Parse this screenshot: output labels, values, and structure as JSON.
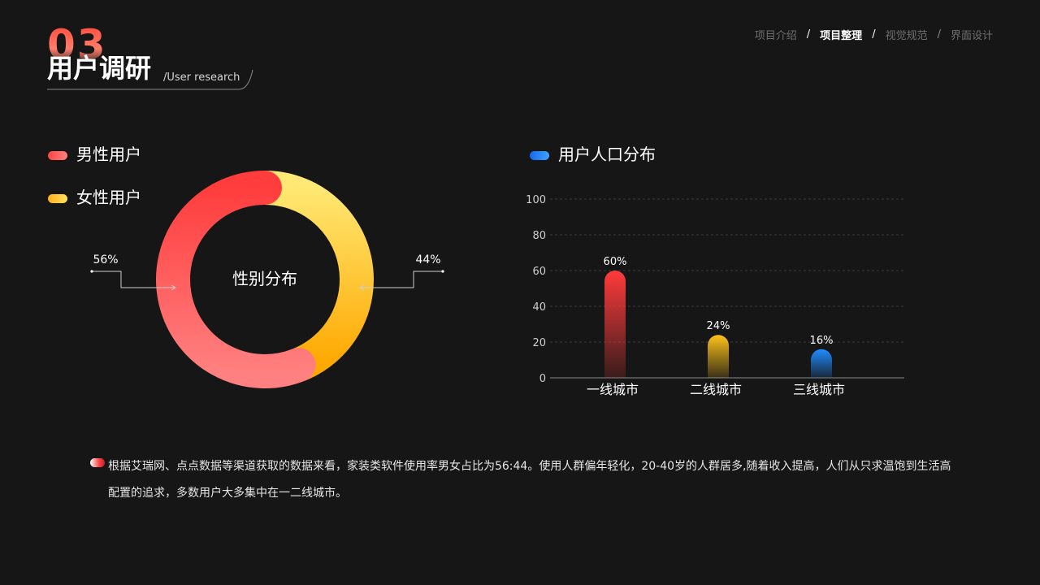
{
  "header": {
    "section_number": "03",
    "title": "用户调研",
    "subtitle": "/User research"
  },
  "breadcrumb": [
    {
      "label": "项目介绍",
      "active": false
    },
    {
      "label": "项目整理",
      "active": true
    },
    {
      "label": "视觉规范",
      "active": false
    },
    {
      "label": "界面设计",
      "active": false
    }
  ],
  "colors": {
    "background": "#161616",
    "male": "#ff4747",
    "female": "#ffc02a",
    "blue": "#1f7cf0"
  },
  "chart_data": [
    {
      "type": "pie",
      "variant": "donut",
      "title": "性别分布",
      "legend": [
        {
          "label": "男性用户",
          "color": "#ff4747"
        },
        {
          "label": "女性用户",
          "color": "#ffc02a"
        }
      ],
      "slices": [
        {
          "label": "男性用户",
          "value": 56,
          "display": "56%"
        },
        {
          "label": "女性用户",
          "value": 44,
          "display": "44%"
        }
      ],
      "legend_placement": "top-left"
    },
    {
      "type": "bar",
      "title": "用户人口分布",
      "categories": [
        "一线城市",
        "二线城市",
        "三线城市"
      ],
      "values": [
        60,
        24,
        16
      ],
      "value_labels": [
        "60%",
        "24%",
        "16%"
      ],
      "ylim": [
        0,
        100
      ],
      "yticks": [
        "0",
        "20",
        "40",
        "60",
        "80",
        "100"
      ],
      "grid": true,
      "bar_colors": [
        "#ff4747",
        "#ffc02a",
        "#1f7cf0"
      ]
    }
  ],
  "note": "根据艾瑞网、点点数据等渠道获取的数据来看，家装类软件使用率男女占比为56:44。使用人群偏年轻化，20-40岁的人群居多,随着收入提高，人们从只求温饱到生活高配置的追求，多数用户大多集中在一二线城市。"
}
